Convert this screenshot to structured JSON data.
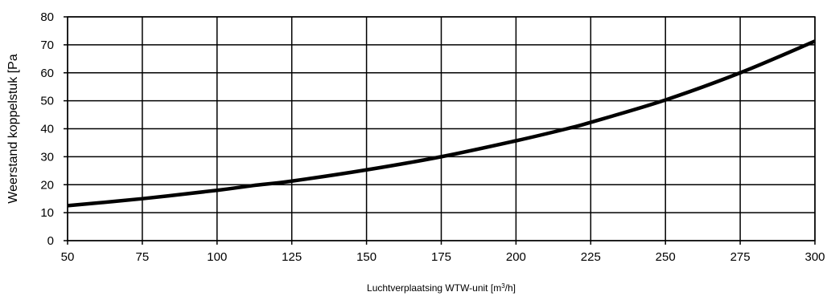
{
  "chart_data": {
    "type": "line",
    "title": "",
    "xlabel": "Luchtverplaatsing WTW-unit [m³/h]",
    "xlabel_base": "Luchtverplaatsing WTW-unit [m",
    "xlabel_sup": "3",
    "xlabel_end": "/h]",
    "ylabel": "Weerstand koppelstuk [Pa",
    "xlim": [
      50,
      300
    ],
    "ylim": [
      0,
      80
    ],
    "x_ticks": [
      50,
      75,
      100,
      125,
      150,
      175,
      200,
      225,
      250,
      275,
      300
    ],
    "y_ticks": [
      0,
      10,
      20,
      30,
      40,
      50,
      60,
      70,
      80
    ],
    "grid": true,
    "legend": "none",
    "line_color": "#000000",
    "series": [
      {
        "x": [
          50,
          75,
          100,
          112,
          125,
          150,
          175,
          200,
          217,
          225,
          250,
          275,
          300
        ],
        "values": [
          12.5,
          15.0,
          18.0,
          19.7,
          21.3,
          25.3,
          30.0,
          35.7,
          40.0,
          42.3,
          50.3,
          60.0,
          71.3
        ]
      }
    ]
  }
}
